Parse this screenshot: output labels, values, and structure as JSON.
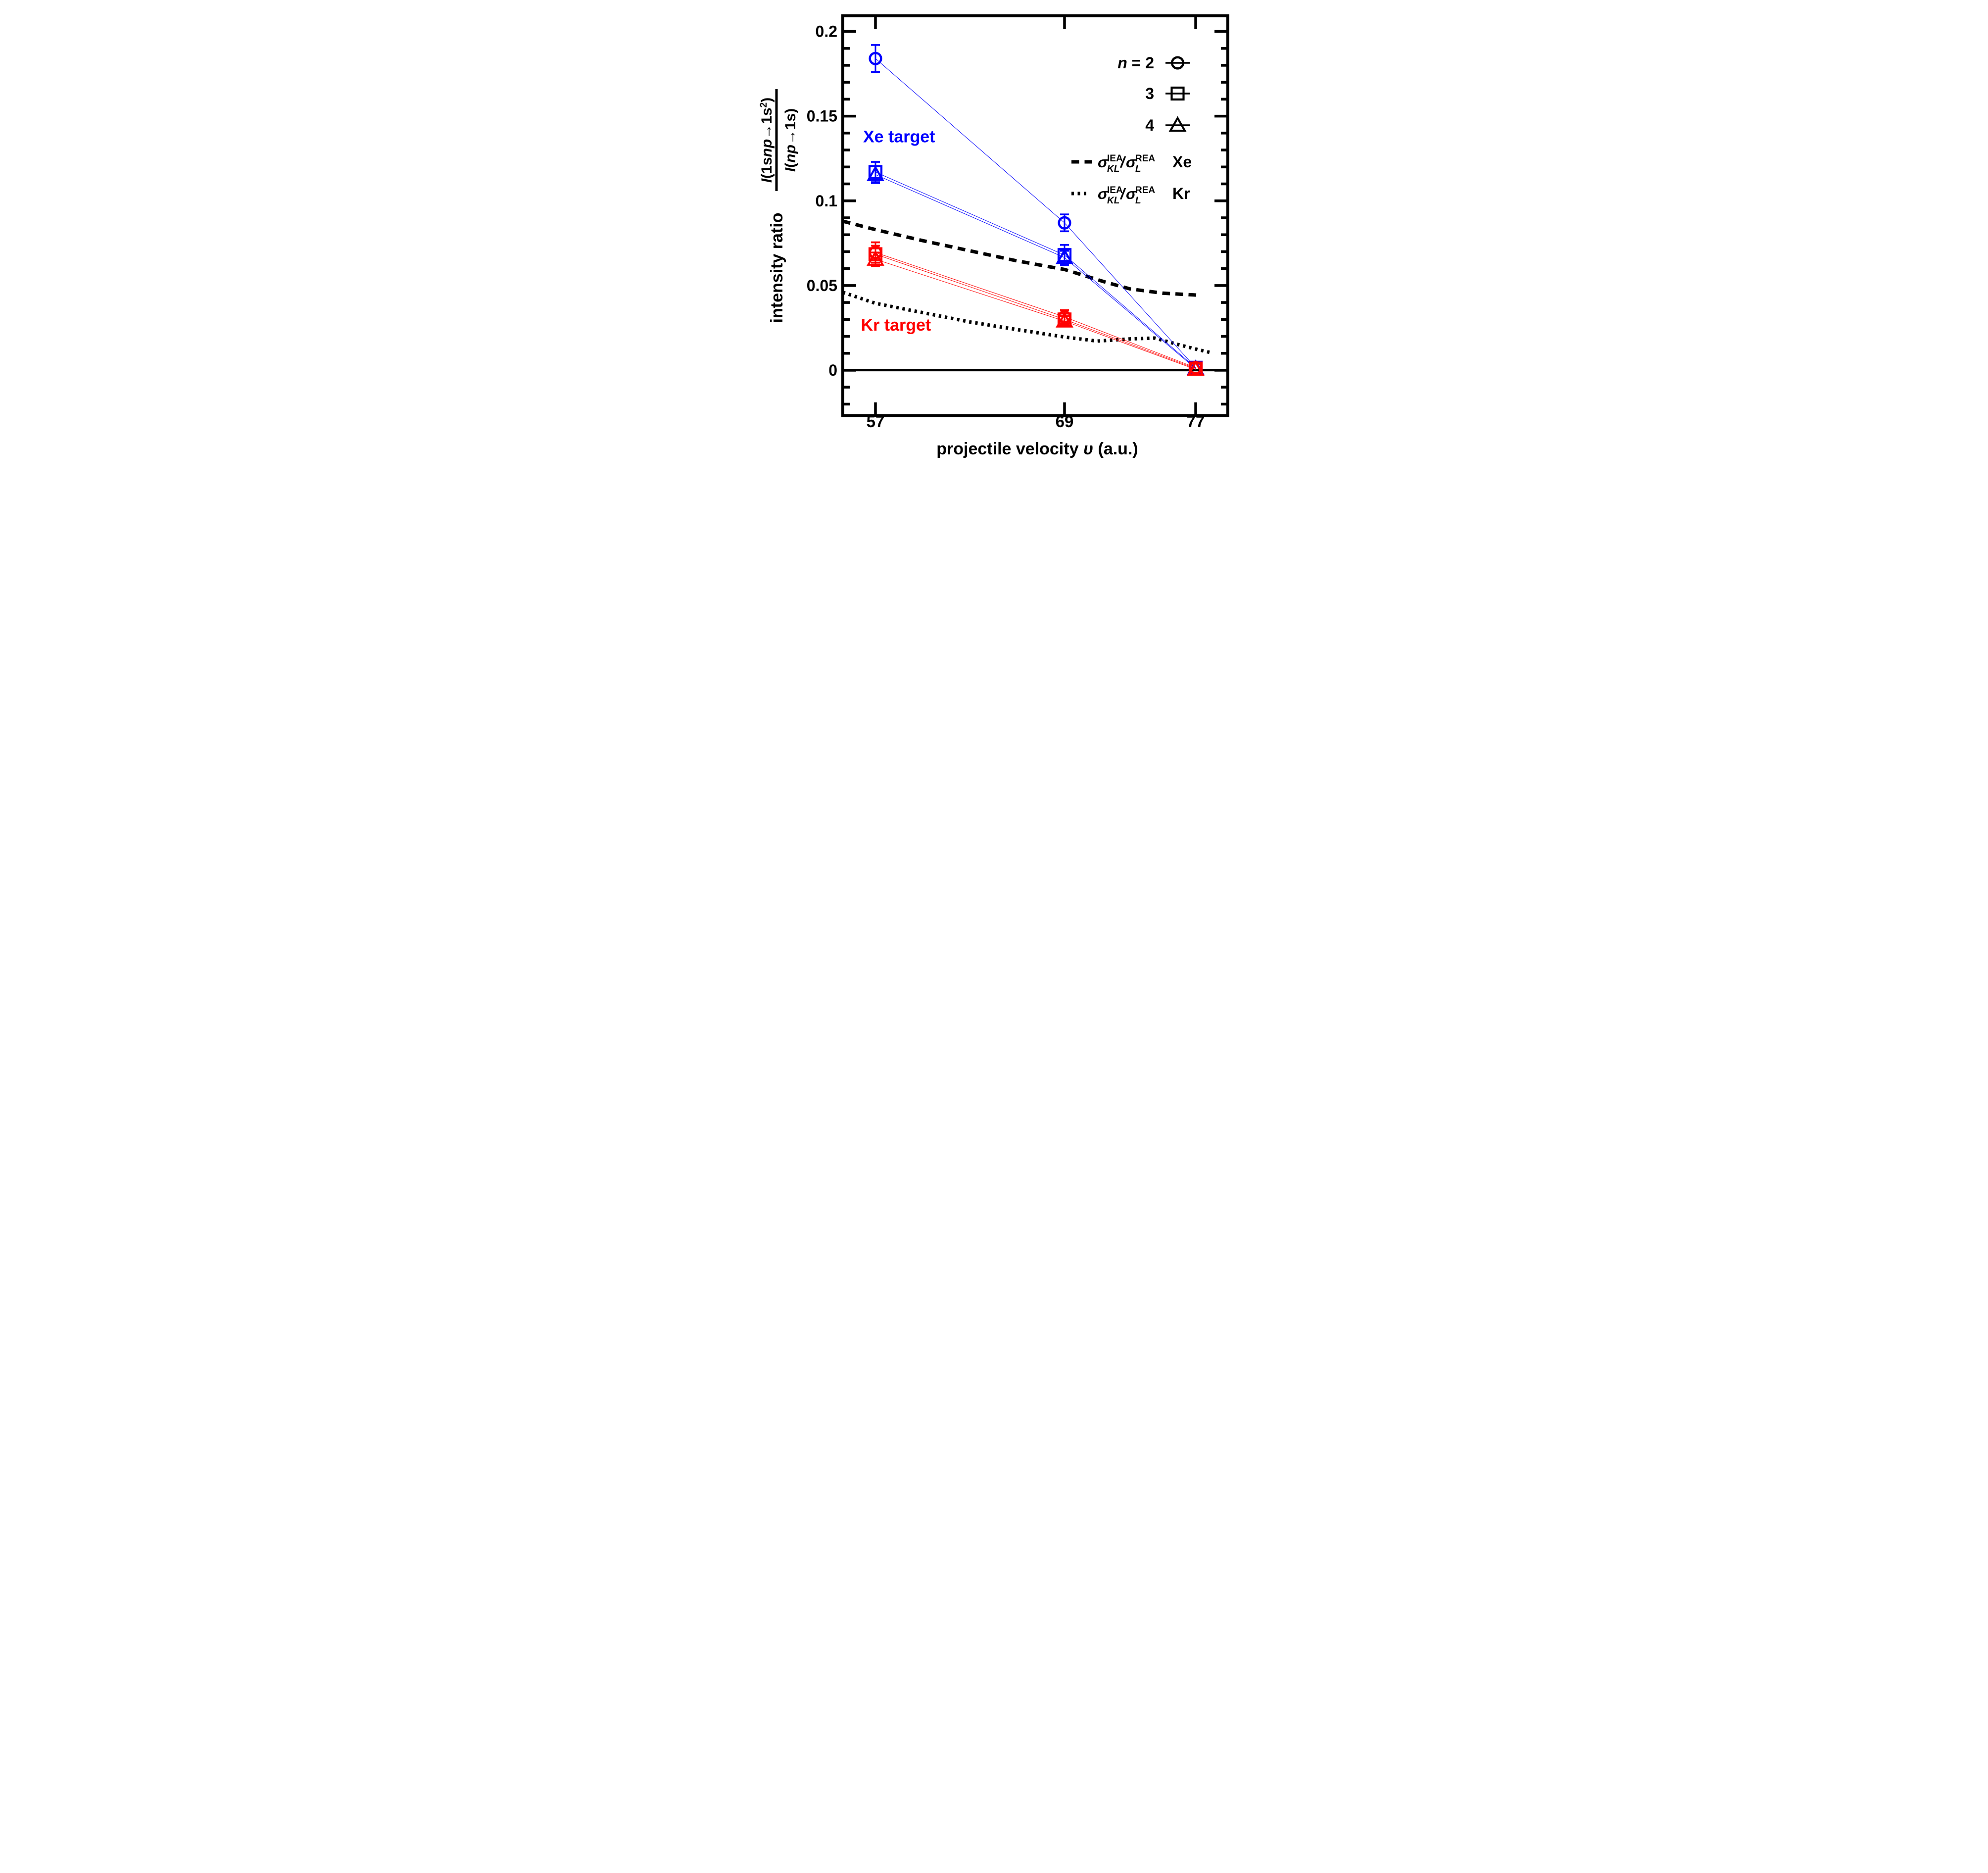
{
  "accent_colors": {
    "xe_blue": "#0000ff",
    "kr_red": "#ff0000",
    "curve_black": "#000000",
    "background": "#ffffff"
  },
  "chart_data": {
    "type": "scatter",
    "title": "",
    "xlabel_parts": [
      {
        "t": "projectile velocity ",
        "italic": false
      },
      {
        "t": " υ",
        "italic": true
      },
      {
        "t": " (a.u.)",
        "italic": false
      }
    ],
    "ylabel": {
      "prefix": "intensity ratio",
      "numerator_parts": [
        {
          "t": "I",
          "italic": true
        },
        {
          "t": "(1s",
          "italic": false
        },
        {
          "t": "np",
          "italic": true
        },
        {
          "t": "→",
          "italic": false
        },
        {
          "t": "1s",
          "italic": false
        },
        {
          "t": "2",
          "italic": false,
          "sup": true
        },
        {
          "t": ")",
          "italic": false
        }
      ],
      "denominator_parts": [
        {
          "t": "I",
          "italic": true
        },
        {
          "t": "(",
          "italic": false
        },
        {
          "t": "np",
          "italic": true
        },
        {
          "t": "→",
          "italic": false
        },
        {
          "t": "1s)",
          "italic": false
        }
      ]
    },
    "xlim": [
      54.8,
      79.0
    ],
    "ylim": [
      -0.0269,
      0.209
    ],
    "x_ticks": [
      {
        "value": 57,
        "label": "57"
      },
      {
        "value": 69,
        "label": "69"
      },
      {
        "value": 77,
        "label": "77"
      }
    ],
    "y_ticks": [
      {
        "value": 0,
        "label": "0"
      },
      {
        "value": 0.05,
        "label": "0.05"
      },
      {
        "value": 0.1,
        "label": "0.1"
      },
      {
        "value": 0.15,
        "label": "0.15"
      },
      {
        "value": 0.2,
        "label": "0.2"
      }
    ],
    "y_minor_ticks": [
      -0.02,
      -0.01,
      0.01,
      0.02,
      0.03,
      0.04,
      0.06,
      0.07,
      0.08,
      0.09,
      0.11,
      0.12,
      0.13,
      0.14,
      0.16,
      0.17,
      0.18,
      0.19
    ],
    "zero_line": true,
    "grid": false,
    "series": [
      {
        "name": "Xe target n=2",
        "target": "Xe",
        "n": "2",
        "marker": "circle",
        "color": "#0000ff",
        "x": [
          57,
          69,
          77
        ],
        "y": [
          0.184,
          0.087,
          0.0015
        ],
        "yerr": [
          0.008,
          0.005,
          0
        ]
      },
      {
        "name": "Xe target n=3",
        "target": "Xe",
        "n": "3",
        "marker": "square",
        "color": "#0000ff",
        "x": [
          57,
          69,
          77
        ],
        "y": [
          0.117,
          0.068,
          0.0015
        ],
        "yerr": [
          0.006,
          0.006,
          0
        ]
      },
      {
        "name": "Xe target n=4",
        "target": "Xe",
        "n": "4",
        "marker": "triangle",
        "color": "#0000ff",
        "x": [
          57,
          69,
          77
        ],
        "y": [
          0.1155,
          0.0665,
          0.001
        ],
        "yerr": [
          0.005,
          0.004,
          0
        ]
      },
      {
        "name": "Kr target n=2",
        "target": "Kr",
        "n": "2",
        "marker": "circle",
        "color": "#ff0000",
        "x": [
          57,
          69,
          77
        ],
        "y": [
          0.0695,
          0.0315,
          0.0015
        ],
        "yerr": [
          0.006,
          0.004,
          0
        ]
      },
      {
        "name": "Kr target n=3",
        "target": "Kr",
        "n": "3",
        "marker": "square",
        "color": "#ff0000",
        "x": [
          57,
          69,
          77
        ],
        "y": [
          0.0685,
          0.03,
          0.001
        ],
        "yerr": [
          0.005,
          0.0035,
          0
        ]
      },
      {
        "name": "Kr target n=4",
        "target": "Kr",
        "n": "4",
        "marker": "triangle",
        "color": "#ff0000",
        "x": [
          57,
          69,
          77
        ],
        "y": [
          0.0655,
          0.029,
          0.0005
        ],
        "yerr": [
          0.004,
          0.003,
          0
        ]
      }
    ],
    "curves": [
      {
        "name": "sigma-ratio-Xe",
        "style": "dashed",
        "color": "#000000",
        "points": [
          [
            54.8,
            0.088
          ],
          [
            57,
            0.083
          ],
          [
            60,
            0.0765
          ],
          [
            63,
            0.0705
          ],
          [
            66,
            0.0645
          ],
          [
            69,
            0.0595
          ],
          [
            71.5,
            0.052
          ],
          [
            73,
            0.048
          ],
          [
            75,
            0.0455
          ],
          [
            77.2,
            0.0443
          ]
        ]
      },
      {
        "name": "sigma-ratio-Kr",
        "style": "dotted",
        "color": "#000000",
        "points": [
          [
            54.8,
            0.046
          ],
          [
            57,
            0.0395
          ],
          [
            60,
            0.034
          ],
          [
            63,
            0.0285
          ],
          [
            66,
            0.024
          ],
          [
            69,
            0.0196
          ],
          [
            71,
            0.0172
          ],
          [
            73,
            0.0185
          ],
          [
            74.5,
            0.019
          ],
          [
            76,
            0.015
          ],
          [
            77,
            0.0125
          ],
          [
            77.9,
            0.0105
          ]
        ]
      }
    ],
    "annotations": [
      {
        "text": "Xe target",
        "color": "#0000ff",
        "x": 58.5,
        "y": 0.138
      },
      {
        "text": "Kr target",
        "color": "#ff0000",
        "x": 58.3,
        "y": 0.0269
      }
    ],
    "legend": {
      "position": "upper-right",
      "marker_rows": [
        {
          "label_parts": [
            {
              "t": "n",
              "italic": true
            },
            {
              "t": " = 2",
              "italic": false
            }
          ],
          "marker": "circle"
        },
        {
          "label_parts": [
            {
              "t": "3",
              "italic": false
            }
          ],
          "marker": "square"
        },
        {
          "label_parts": [
            {
              "t": "4",
              "italic": false
            }
          ],
          "marker": "triangle"
        }
      ],
      "curve_rows": [
        {
          "style": "dashed",
          "sigma1": {
            "base": "σ",
            "sup": "IEA",
            "sub": "KL"
          },
          "slash": "/",
          "sigma2": {
            "base": "σ",
            "sup": "REA",
            "sub": "L"
          },
          "target": "Xe"
        },
        {
          "style": "dotted",
          "sigma1": {
            "base": "σ",
            "sup": "IEA",
            "sub": "KL"
          },
          "slash": "/",
          "sigma2": {
            "base": "σ",
            "sup": "REA",
            "sub": "L"
          },
          "target": "Kr"
        }
      ]
    }
  }
}
